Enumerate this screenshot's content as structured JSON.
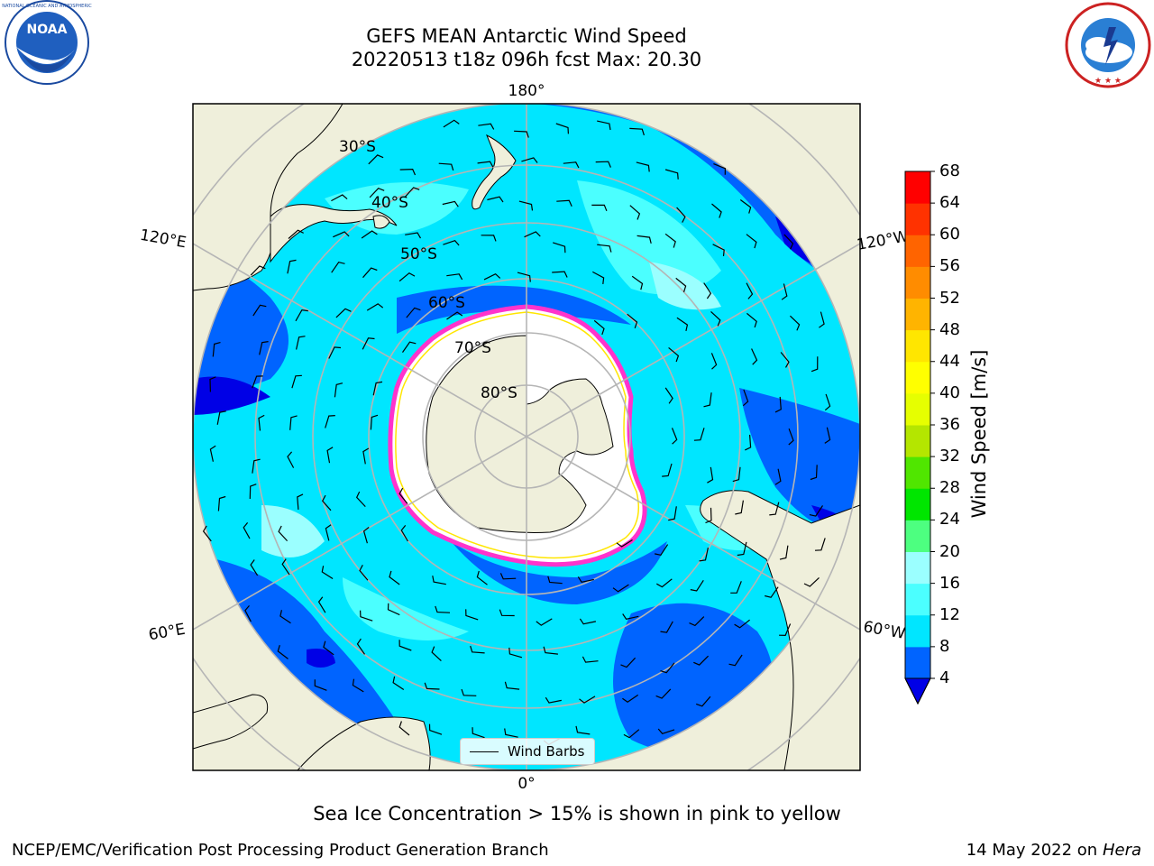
{
  "title": {
    "line1": "GEFS MEAN Antarctic Wind Speed",
    "line2": "20220513 t18z 096h fcst   Max: 20.30"
  },
  "logos": {
    "left": {
      "text": "NOAA",
      "ring_text": "NATIONAL OCEANIC AND ATMOSPHERIC ADMINISTRATION · U.S. DEPARTMENT OF COMMERCE"
    },
    "right": {
      "ring_text": "NATIONAL WEATHER SERVICE"
    }
  },
  "map": {
    "projection": "south-polar-stereographic",
    "longitude_labels": {
      "top": "180°",
      "bottom": "0°",
      "left_upper": "120°E",
      "left_lower": "60°E",
      "right_upper": "120°W",
      "right_lower": "60°W"
    },
    "latitude_labels": [
      "30°S",
      "40°S",
      "50°S",
      "60°S",
      "70°S",
      "80°S"
    ],
    "legend": {
      "entry": "Wind Barbs"
    }
  },
  "colorbar": {
    "label": "Wind Speed [m/s]",
    "ticks": [
      "4",
      "8",
      "12",
      "16",
      "20",
      "24",
      "28",
      "32",
      "36",
      "40",
      "44",
      "48",
      "52",
      "56",
      "60",
      "64",
      "68"
    ],
    "colors": [
      "#0064ff",
      "#00e6ff",
      "#4bffff",
      "#9bffff",
      "#4dff80",
      "#00e600",
      "#50e600",
      "#b4e600",
      "#e6ff00",
      "#ffff00",
      "#ffe600",
      "#ffb400",
      "#ff8c00",
      "#ff6400",
      "#ff3200",
      "#ff0000"
    ],
    "under_color": "#0000e6",
    "extend": "min"
  },
  "colors": {
    "land": "#efefdb",
    "ice_edge": "#ff33cc",
    "ice_fill": "#ffffff",
    "grid": "#b5b5b5",
    "ocean_fast": "#0064ff",
    "ocean_medium": "#00e6ff",
    "ocean_light": "#4bffff",
    "ocean_lightest": "#9bffff",
    "ocean_deep": "#0000e6"
  },
  "footnote": "Sea Ice Concentration > 15% is shown in pink to yellow",
  "credit": "NCEP/EMC/Verification Post Processing Product Generation Branch",
  "date": {
    "text": "14 May 2022 on",
    "machine": "Hera"
  }
}
